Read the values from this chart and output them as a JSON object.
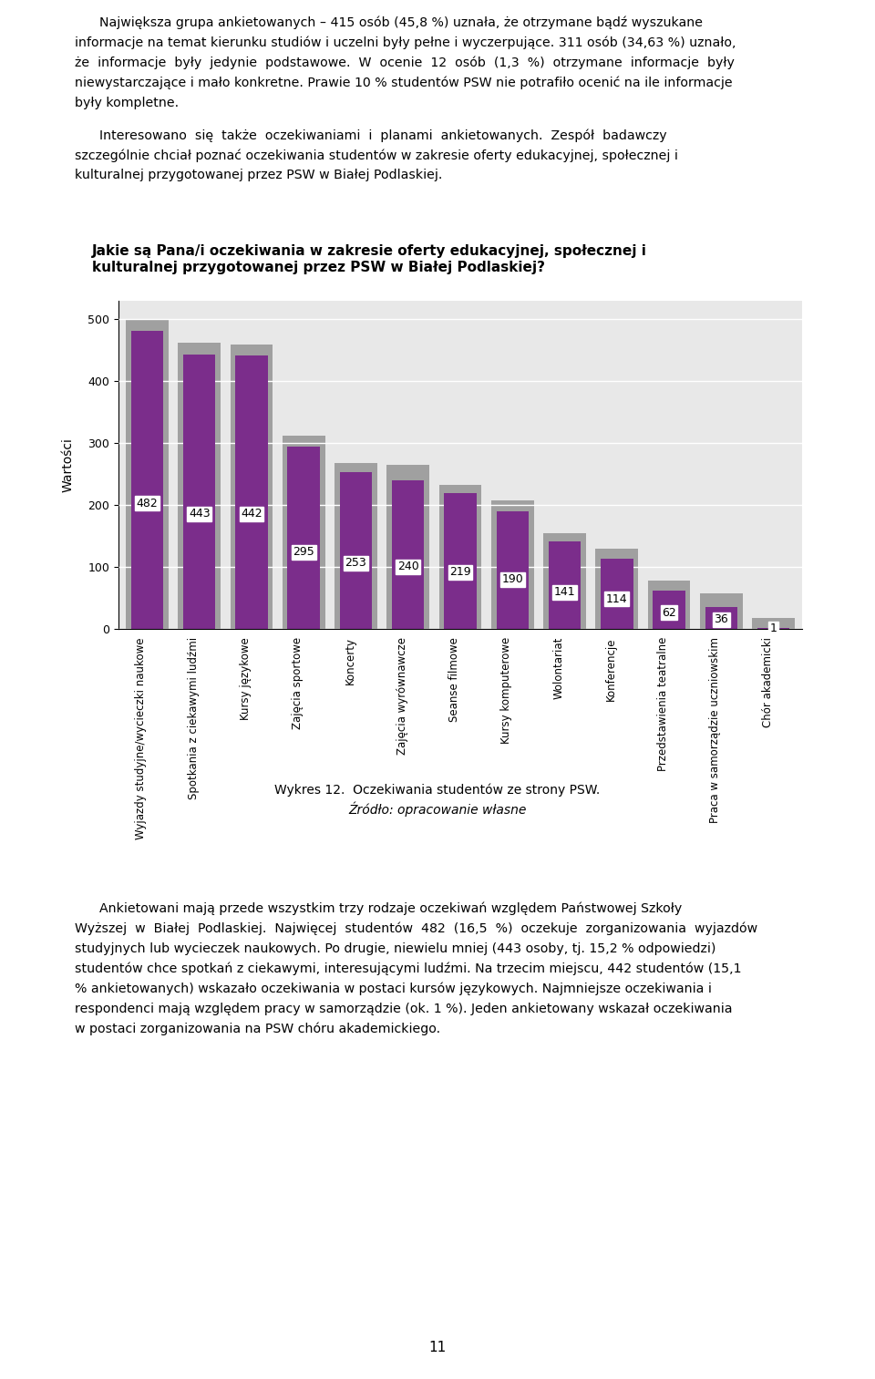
{
  "title_line1": "Jakie są Pana/i oczekiwania w zakresie oferty edukacyjnej, społecznej i",
  "title_line2": "kulturalnej przygotowanej przez PSW w Białej Podlaskiej?",
  "ylabel": "Wartości",
  "values": [
    482,
    443,
    442,
    295,
    253,
    240,
    219,
    190,
    141,
    114,
    62,
    36,
    1
  ],
  "shadow_values": [
    500,
    462,
    460,
    312,
    268,
    265,
    232,
    208,
    155,
    130,
    78,
    58,
    18
  ],
  "categories": [
    "Wyjazdy studyjne/wycieczki naukowe",
    "Spotkania z ciekawymi ludźmi",
    "Kursy językowe",
    "Zajęcia sportowe",
    "Koncerty",
    "Zajęcia wyrównawcze",
    "Seanse filmowe",
    "Kursy komputerowe",
    "Wolontariat",
    "Konferencje",
    "Przedstawienia teatralne",
    "Praca w samorządzie uczniowskim",
    "Chór akademicki"
  ],
  "bar_color": "#7B2D8B",
  "shadow_color": "#A0A0A0",
  "bg_color": "#E8E8E8",
  "ylim": [
    0,
    530
  ],
  "yticks": [
    0,
    100,
    200,
    300,
    400,
    500
  ],
  "caption_line1": "Wykres 12.  Oczekiwania studentów ze strony PSW.",
  "caption_line2": "Źródło: opracowanie własne",
  "title_fontsize": 11,
  "label_fontsize": 8.5,
  "value_fontsize": 9,
  "ylabel_fontsize": 10,
  "top_para1": [
    "      Największa grupa ankietowanych – 415 osób (45,8 %) uznała, że otrzymane bądź wyszukane",
    "informacje na temat kierunku studiów i uczelni były pełne i wyczerpujące. 311 osób (34,63 %) uznało,",
    "że  informacje  były  jedynie  podstawowe.  W  ocenie  12  osób  (1,3  %)  otrzymane  informacje  były",
    "niewystarczające i mało konkretne. Prawie 10 % studentów PSW nie potrafiło ocenić na ile informacje",
    "były kompletne."
  ],
  "top_para2": [
    "      Interesowano  się  także  oczekiwaniami  i  planami  ankietowanych.  Zespół  badawczy",
    "szczególnie chciał poznać oczekiwania studentów w zakresie oferty edukacyjnej, społecznej i",
    "kulturalnej przygotowanej przez PSW w Białej Podlaskiej."
  ],
  "bottom_para": [
    "      Ankietowani mają przede wszystkim trzy rodzaje oczekiwań względem Państwowej Szkoły",
    "Wyższej  w  Białej  Podlaskiej.  Najwięcej  studentów  482  (16,5  %)  oczekuje  zorganizowania  wyjazdów",
    "studyjnych lub wycieczek naukowych. Po drugie, niewielu mniej (443 osoby, tj. 15,2 % odpowiedzi)",
    "studentów chce spotkań z ciekawymi, interesującymi ludźmi. Na trzecim miejscu, 442 studentów (15,1",
    "% ankietowanych) wskazało oczekiwania w postaci kursów językowych. Najmniejsze oczekiwania i",
    "respondenci mają względem pracy w samorządzie (ok. 1 %). Jeden ankietowany wskazał oczekiwania",
    "w postaci zorganizowania na PSW chóru akademickiego."
  ]
}
